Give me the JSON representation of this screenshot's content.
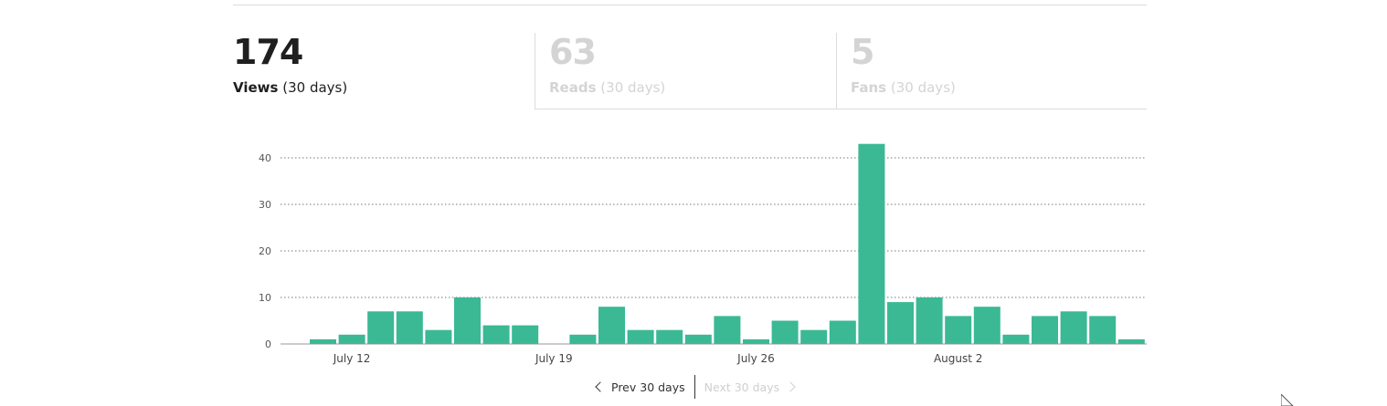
{
  "stats": {
    "views": {
      "value": "174",
      "label": "Views",
      "period": "(30 days)"
    },
    "reads": {
      "value": "63",
      "label": "Reads",
      "period": "(30 days)"
    },
    "fans": {
      "value": "5",
      "label": "Fans",
      "period": "(30 days)"
    }
  },
  "pager": {
    "prev_label": "Prev 30 days",
    "next_label": "Next 30 days"
  },
  "colors": {
    "bar": "#3ab994",
    "active_text": "#1f1f1f",
    "inactive_text": "#d4d4d4"
  },
  "chart_data": {
    "type": "bar",
    "title": "",
    "xlabel": "",
    "ylabel": "",
    "ylim": [
      0,
      45
    ],
    "yticks": [
      0,
      10,
      20,
      30,
      40
    ],
    "grid": true,
    "x_tick_labels": [
      {
        "label": "July 12",
        "index": 1
      },
      {
        "label": "July 19",
        "index": 8
      },
      {
        "label": "July 26",
        "index": 15
      },
      {
        "label": "August 2",
        "index": 22
      }
    ],
    "values": [
      1,
      2,
      7,
      7,
      3,
      10,
      4,
      4,
      0,
      2,
      8,
      3,
      3,
      2,
      6,
      1,
      5,
      3,
      5,
      43,
      9,
      10,
      6,
      8,
      2,
      6,
      7,
      6,
      1
    ]
  }
}
